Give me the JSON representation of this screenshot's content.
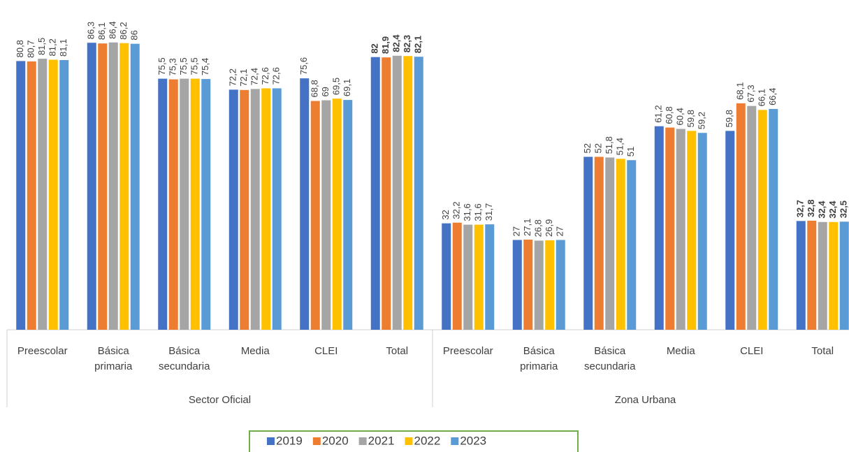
{
  "chart_data": {
    "type": "bar",
    "categories": [
      "Preescolar",
      "Básica primaria",
      "Básica secundaria",
      "Media",
      "CLEI",
      "Total",
      "Preescolar",
      "Básica primaria",
      "Básica secundaria",
      "Media",
      "CLEI",
      "Total"
    ],
    "category_groups": [
      "Sector Oficial",
      "Zona Urbana"
    ],
    "ylim": [
      0,
      100
    ],
    "legend": "bottom",
    "series": [
      {
        "name": "2019",
        "color": "#4472c4",
        "values": [
          80.8,
          86.3,
          75.5,
          72.2,
          75.6,
          82,
          32,
          27,
          52,
          61.2,
          59.8,
          32.7
        ],
        "value_labels": [
          "80,8",
          "86,3",
          "75,5",
          "72,2",
          "75,6",
          "82",
          "32",
          "27",
          "52",
          "61,2",
          "59,8",
          "32,7"
        ]
      },
      {
        "name": "2020",
        "color": "#ed7d31",
        "values": [
          80.7,
          86.1,
          75.3,
          72.1,
          68.8,
          81.9,
          32.2,
          27.1,
          52,
          60.8,
          68.1,
          32.8
        ],
        "value_labels": [
          "80,7",
          "86,1",
          "75,3",
          "72,1",
          "68,8",
          "81,9",
          "32,2",
          "27,1",
          "52",
          "60,8",
          "68,1",
          "32,8"
        ]
      },
      {
        "name": "2021",
        "color": "#a5a5a5",
        "values": [
          81.5,
          86.4,
          75.5,
          72.4,
          69,
          82.4,
          31.6,
          26.8,
          51.8,
          60.4,
          67.3,
          32.4
        ],
        "value_labels": [
          "81,5",
          "86,4",
          "75,5",
          "72,4",
          "69",
          "82,4",
          "31,6",
          "26,8",
          "51,8",
          "60,4",
          "67,3",
          "32,4"
        ]
      },
      {
        "name": "2022",
        "color": "#ffc000",
        "values": [
          81.2,
          86.2,
          75.5,
          72.6,
          69.5,
          82.3,
          31.6,
          26.9,
          51.4,
          59.8,
          66.1,
          32.4
        ],
        "value_labels": [
          "81,2",
          "86,2",
          "75,5",
          "72,6",
          "69,5",
          "82,3",
          "31,6",
          "26,9",
          "51,4",
          "59,8",
          "66,1",
          "32,4"
        ]
      },
      {
        "name": "2023",
        "color": "#5b9bd5",
        "values": [
          81.1,
          86,
          75.4,
          72.6,
          69.1,
          82.1,
          31.7,
          27,
          51,
          59.2,
          66.4,
          32.5
        ],
        "value_labels": [
          "81,1",
          "86",
          "75,4",
          "72,6",
          "69,1",
          "82,1",
          "31,7",
          "27",
          "51",
          "59,2",
          "66,4",
          "32,5"
        ]
      }
    ]
  }
}
